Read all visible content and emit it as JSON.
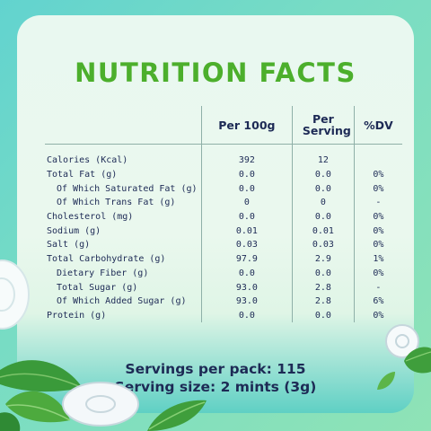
{
  "title": "NUTRITION FACTS",
  "table": {
    "headers": [
      "Per 100g",
      "Per Serving",
      "%DV"
    ],
    "rows": [
      {
        "name": "Calories (Kcal)",
        "per100": "392",
        "serving": "12",
        "dv": ""
      },
      {
        "name": "Total Fat (g)",
        "per100": "0.0",
        "serving": "0.0",
        "dv": "0%"
      },
      {
        "name": "Of Which Saturated Fat (g)",
        "per100": "0.0",
        "serving": "0.0",
        "dv": "0%"
      },
      {
        "name": "Of Which Trans Fat (g)",
        "per100": "0",
        "serving": "0",
        "dv": "-"
      },
      {
        "name": "Cholesterol (mg)",
        "per100": "0.0",
        "serving": "0.0",
        "dv": "0%"
      },
      {
        "name": "Sodium (g)",
        "per100": "0.01",
        "serving": "0.01",
        "dv": "0%"
      },
      {
        "name": "Salt (g)",
        "per100": "0.03",
        "serving": "0.03",
        "dv": "0%"
      },
      {
        "name": "Total Carbohydrate (g)",
        "per100": "97.9",
        "serving": "2.9",
        "dv": "1%"
      },
      {
        "name": "Dietary Fiber (g)",
        "per100": "0.0",
        "serving": "0.0",
        "dv": "0%"
      },
      {
        "name": "Total Sugar (g)",
        "per100": "93.0",
        "serving": "2.8",
        "dv": "-"
      },
      {
        "name": "Of Which Added Sugar (g)",
        "per100": "93.0",
        "serving": "2.8",
        "dv": "6%"
      },
      {
        "name": "Protein (g)",
        "per100": "0.0",
        "serving": "0.0",
        "dv": "0%"
      }
    ]
  },
  "footer": {
    "servings_per_pack": "Servings per pack: 115",
    "serving_size": "Serving size: 2 mints (3g)"
  },
  "colors": {
    "title": "#4caf2c",
    "text": "#1d2a55",
    "background": "#6fd8c9",
    "card": "#e9f8f0"
  }
}
